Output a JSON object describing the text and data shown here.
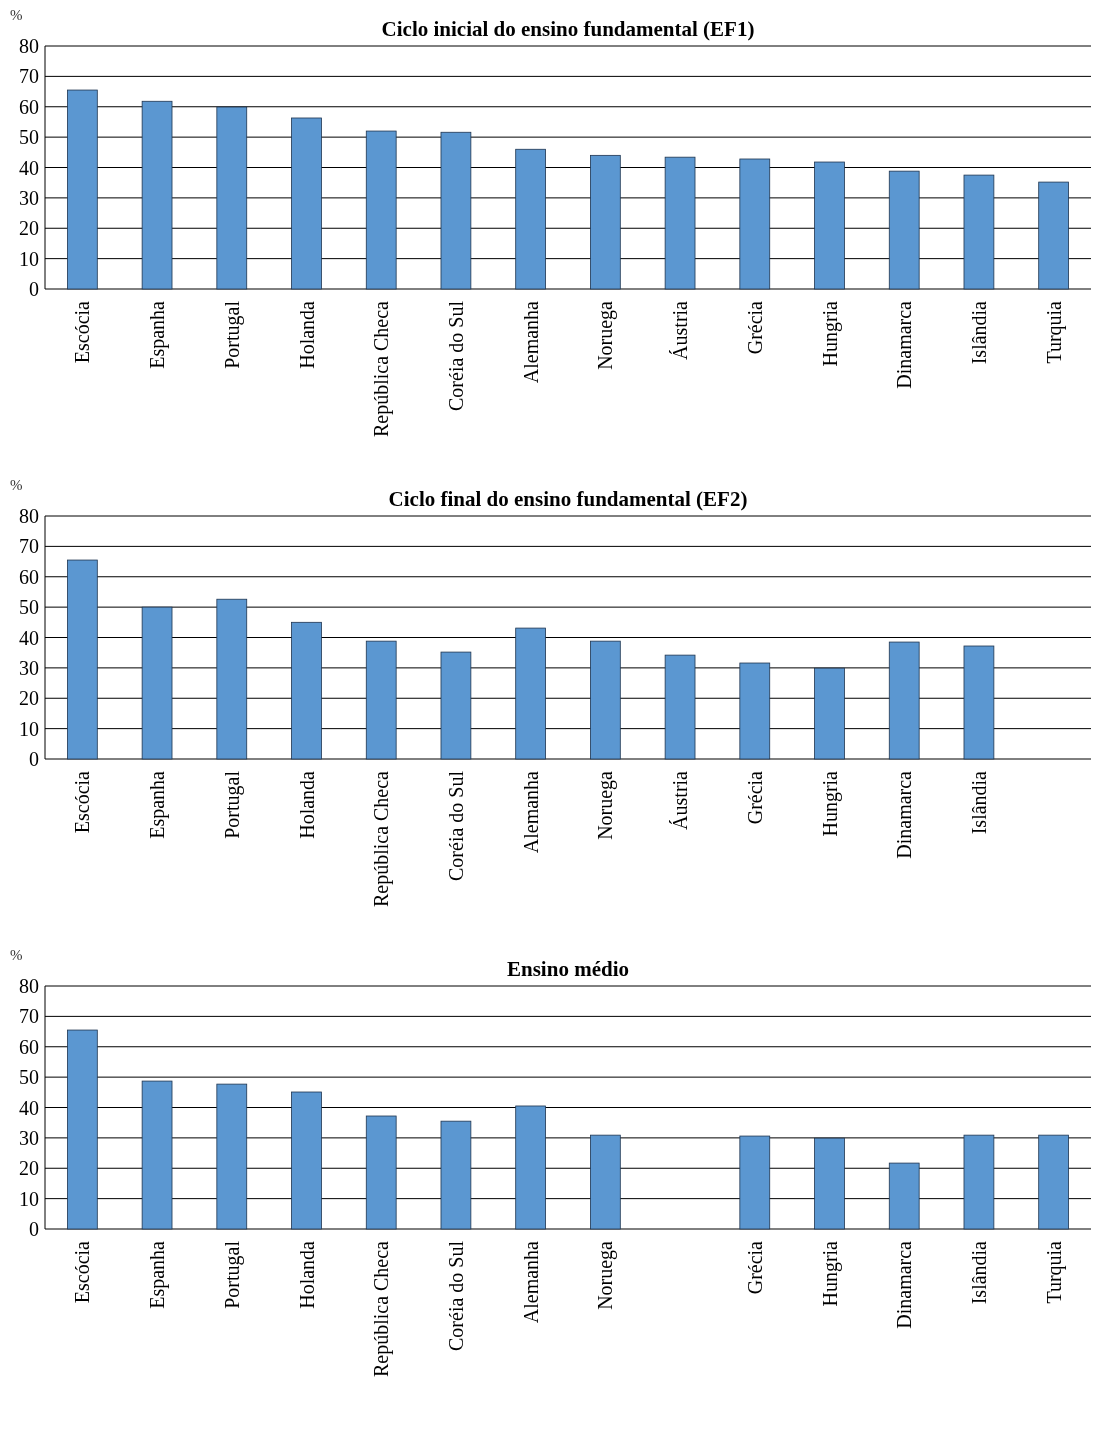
{
  "chart_data": [
    {
      "type": "bar",
      "title": "Ciclo inicial do ensino fundamental (EF1)",
      "ylabel": "%",
      "categories": [
        "Escócia",
        "Espanha",
        "Portugal",
        "Holanda",
        "República Checa",
        "Coréia do Sul",
        "Alemanha",
        "Noruega",
        "Áustria",
        "Grécia",
        "Hungria",
        "Dinamarca",
        "Islândia",
        "Turquia"
      ],
      "values": [
        65.5,
        61.8,
        59.9,
        56.3,
        52,
        51.6,
        46,
        44,
        43.4,
        42.8,
        41.8,
        38.8,
        37.5,
        35.2
      ],
      "color": "#5b97d1",
      "ylim": [
        0,
        80
      ],
      "yticks": [
        0,
        10,
        20,
        30,
        40,
        50,
        60,
        70,
        80
      ],
      "grid": "y"
    },
    {
      "type": "bar",
      "title": "Ciclo final do ensino fundamental (EF2)",
      "ylabel": "%",
      "categories": [
        "Escócia",
        "Espanha",
        "Portugal",
        "Holanda",
        "República Checa",
        "Coréia do Sul",
        "Alemanha",
        "Noruega",
        "Áustria",
        "Grécia",
        "Hungria",
        "Dinamarca",
        "Islândia",
        null
      ],
      "values": [
        65.5,
        50,
        52.6,
        45,
        38.8,
        35.2,
        43.1,
        38.8,
        34.2,
        31.6,
        29.9,
        38.5,
        37.2,
        null
      ],
      "color": "#5b97d1",
      "ylim": [
        0,
        80
      ],
      "yticks": [
        0,
        10,
        20,
        30,
        40,
        50,
        60,
        70,
        80
      ],
      "grid": "y"
    },
    {
      "type": "bar",
      "title": "Ensino médio",
      "ylabel": "%",
      "categories": [
        "Escócia",
        "Espanha",
        "Portugal",
        "Holanda",
        "República Checa",
        "Coréia do Sul",
        "Alemanha",
        "Noruega",
        null,
        "Grécia",
        "Hungria",
        "Dinamarca",
        "Islândia",
        "Turquia"
      ],
      "values": [
        65.5,
        48.7,
        47.7,
        45.1,
        37.2,
        35.5,
        40.5,
        30.9,
        null,
        30.6,
        29.9,
        21.7,
        30.9,
        30.9
      ],
      "color": "#5b97d1",
      "ylim": [
        0,
        80
      ],
      "yticks": [
        0,
        10,
        20,
        30,
        40,
        50,
        60,
        70,
        80
      ],
      "grid": "y"
    }
  ]
}
